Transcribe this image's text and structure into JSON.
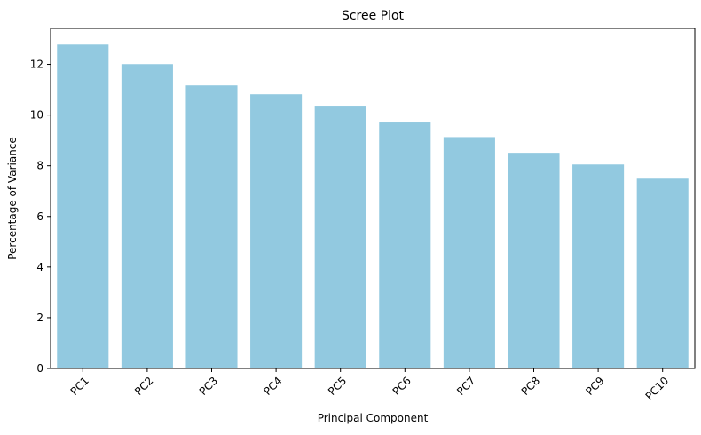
{
  "chart_data": {
    "type": "bar",
    "title": "Scree Plot",
    "xlabel": "Principal Component",
    "ylabel": "Percentage of Variance",
    "categories": [
      "PC1",
      "PC2",
      "PC3",
      "PC4",
      "PC5",
      "PC6",
      "PC7",
      "PC8",
      "PC9",
      "PC10"
    ],
    "values": [
      12.78,
      12.01,
      11.17,
      10.82,
      10.37,
      9.74,
      9.13,
      8.51,
      8.05,
      7.49
    ],
    "ylim": [
      0,
      13.42
    ],
    "yticks": [
      0,
      2,
      4,
      6,
      8,
      10,
      12
    ],
    "bar_color": "#92c9e0",
    "grid": false,
    "legend": "none",
    "xtick_rotation_deg": 45
  }
}
